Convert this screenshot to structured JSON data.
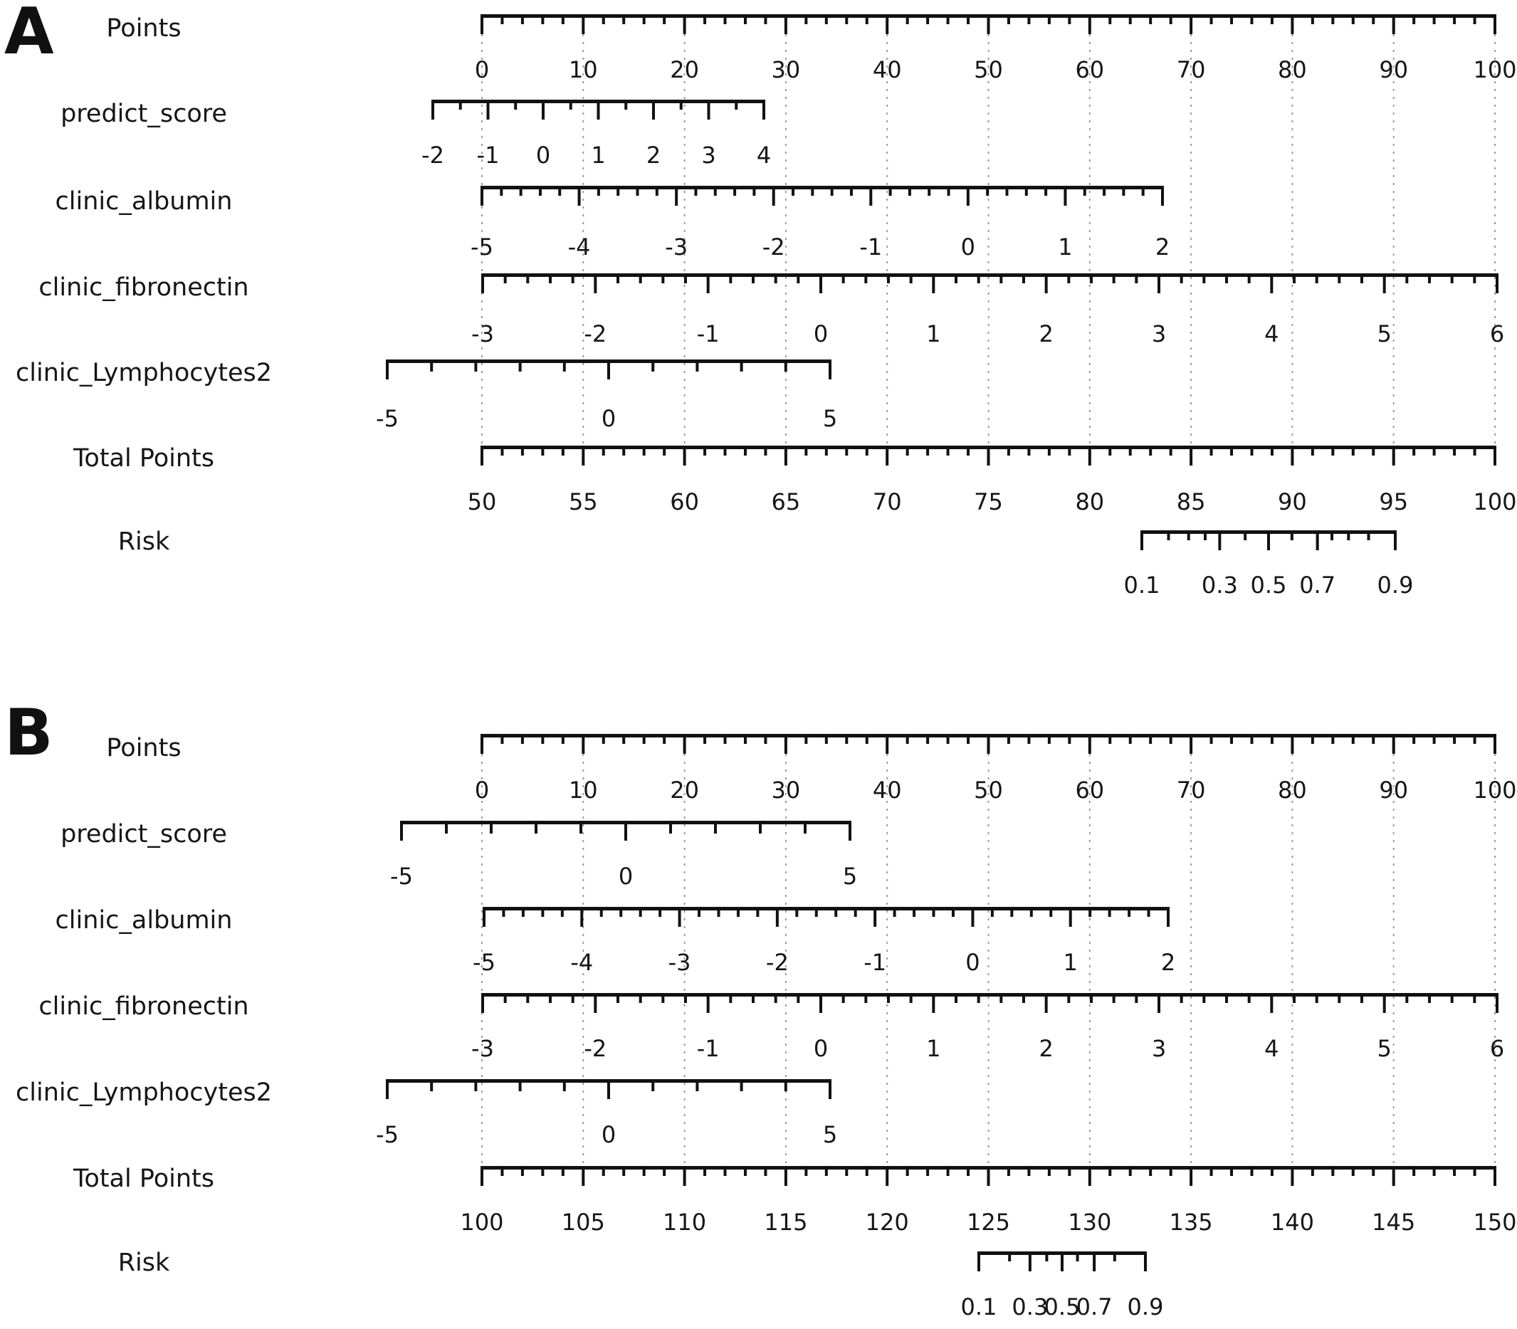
{
  "figure": {
    "background": "#ffffff",
    "axis_color": "#111111",
    "gridline_color": "#9a9a9a"
  },
  "chart_data": {
    "type": "nomogram",
    "panels": [
      {
        "panel_label": "A",
        "axes": [
          {
            "key": "points",
            "label": "Points",
            "scale": "linear",
            "range": [
              0,
              100
            ],
            "labeled_values": [
              0,
              10,
              20,
              30,
              40,
              50,
              60,
              70,
              80,
              90,
              100
            ],
            "minor_step": 2
          },
          {
            "key": "predict_score",
            "label": "predict_score",
            "scale": "linear",
            "range": [
              -2,
              4
            ],
            "labeled_values": [
              -2,
              -1,
              0,
              1,
              2,
              3,
              4
            ],
            "minor_step": 0.5
          },
          {
            "key": "clinic_albumin",
            "label": "clinic_albumin",
            "scale": "linear",
            "range": [
              -5,
              2
            ],
            "labeled_values": [
              -5,
              -4,
              -3,
              -2,
              -1,
              0,
              1,
              2
            ],
            "minor_step": 0.2
          },
          {
            "key": "clinic_fibronectin",
            "label": "clinic_fibronectin",
            "scale": "linear",
            "range": [
              -3,
              6
            ],
            "labeled_values": [
              -3,
              -2,
              -1,
              0,
              1,
              2,
              3,
              4,
              5,
              6
            ],
            "minor_step": 0.2
          },
          {
            "key": "clinic_Lymphocytes2",
            "label": "clinic_Lymphocytes2",
            "scale": "linear",
            "range": [
              -5,
              5
            ],
            "labeled_values": [
              -5,
              0,
              5
            ],
            "minor_step": 1
          },
          {
            "key": "total_points",
            "label": "Total Points",
            "scale": "linear",
            "range": [
              50,
              100
            ],
            "labeled_values": [
              50,
              55,
              60,
              65,
              70,
              75,
              80,
              85,
              90,
              95,
              100
            ],
            "minor_step": 1
          },
          {
            "key": "risk",
            "label": "Risk",
            "scale": "logit",
            "range": [
              0.1,
              0.9
            ],
            "labeled_values": [
              0.1,
              0.3,
              0.5,
              0.7,
              0.9
            ],
            "minor_values": [
              0.15,
              0.2,
              0.25,
              0.4,
              0.6,
              0.75,
              0.8,
              0.85
            ]
          }
        ]
      },
      {
        "panel_label": "B",
        "axes": [
          {
            "key": "points",
            "label": "Points",
            "scale": "linear",
            "range": [
              0,
              100
            ],
            "labeled_values": [
              0,
              10,
              20,
              30,
              40,
              50,
              60,
              70,
              80,
              90,
              100
            ],
            "minor_step": 2
          },
          {
            "key": "predict_score",
            "label": "predict_score",
            "scale": "linear",
            "range": [
              -5,
              5
            ],
            "labeled_values": [
              -5,
              0,
              5
            ],
            "minor_step": 1
          },
          {
            "key": "clinic_albumin",
            "label": "clinic_albumin",
            "scale": "linear",
            "range": [
              -5,
              2
            ],
            "labeled_values": [
              -5,
              -4,
              -3,
              -2,
              -1,
              0,
              1,
              2
            ],
            "minor_step": 0.2
          },
          {
            "key": "clinic_fibronectin",
            "label": "clinic_fibronectin",
            "scale": "linear",
            "range": [
              -3,
              6
            ],
            "labeled_values": [
              -3,
              -2,
              -1,
              0,
              1,
              2,
              3,
              4,
              5,
              6
            ],
            "minor_step": 0.2
          },
          {
            "key": "clinic_Lymphocytes2",
            "label": "clinic_Lymphocytes2",
            "scale": "linear",
            "range": [
              -5,
              5
            ],
            "labeled_values": [
              -5,
              0,
              5
            ],
            "minor_step": 1
          },
          {
            "key": "total_points",
            "label": "Total Points",
            "scale": "linear",
            "range": [
              100,
              150
            ],
            "labeled_values": [
              100,
              105,
              110,
              115,
              120,
              125,
              130,
              135,
              140,
              145,
              150
            ],
            "minor_step": 1
          },
          {
            "key": "risk",
            "label": "Risk",
            "scale": "logit",
            "range": [
              0.1,
              0.9
            ],
            "labeled_values": [
              0.1,
              0.3,
              0.5,
              0.7,
              0.9
            ],
            "minor_values": [
              0.2,
              0.4,
              0.6,
              0.8
            ]
          }
        ]
      }
    ]
  }
}
